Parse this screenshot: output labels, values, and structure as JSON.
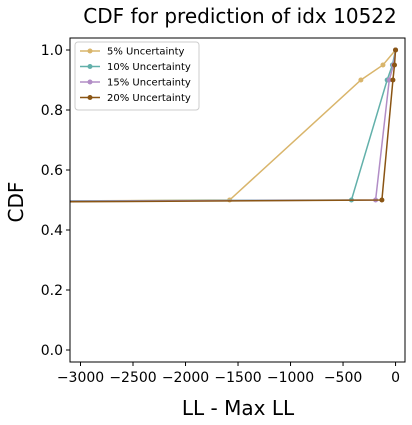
{
  "chart_data": {
    "type": "line",
    "title": "CDF for prediction of idx 10522",
    "xlabel": "LL - Max LL",
    "ylabel": "CDF",
    "xlim": [
      -3100,
      90
    ],
    "ylim": [
      -0.04,
      1.04
    ],
    "xticks": [
      -3000,
      -2500,
      -2000,
      -1500,
      -1000,
      -500,
      0
    ],
    "xtick_labels": [
      "−3000",
      "−2500",
      "−2000",
      "−1500",
      "−1000",
      "−500",
      "0"
    ],
    "yticks": [
      0.0,
      0.2,
      0.4,
      0.6,
      0.8,
      1.0
    ],
    "ytick_labels": [
      "0.0",
      "0.2",
      "0.4",
      "0.6",
      "0.8",
      "1.0"
    ],
    "grid": false,
    "legend_position": "top-left",
    "series": [
      {
        "name": "5% Uncertainty",
        "color": "#d9b56b",
        "points": [
          [
            -3100,
            0.497
          ],
          [
            -1580,
            0.5
          ],
          [
            -330,
            0.9
          ],
          [
            -120,
            0.95
          ],
          [
            0,
            1.0
          ]
        ]
      },
      {
        "name": "10% Uncertainty",
        "color": "#62b0aa",
        "points": [
          [
            -3100,
            0.497
          ],
          [
            -420,
            0.5
          ],
          [
            -80,
            0.9
          ],
          [
            -30,
            0.95
          ],
          [
            0,
            1.0
          ]
        ]
      },
      {
        "name": "15% Uncertainty",
        "color": "#b28dc6",
        "points": [
          [
            -3100,
            0.496
          ],
          [
            -190,
            0.5
          ],
          [
            -60,
            0.9
          ],
          [
            -20,
            0.95
          ],
          [
            0,
            1.0
          ]
        ]
      },
      {
        "name": "20% Uncertainty",
        "color": "#8a5514",
        "points": [
          [
            -3100,
            0.494
          ],
          [
            -130,
            0.5
          ],
          [
            -25,
            0.9
          ],
          [
            -10,
            0.95
          ],
          [
            0,
            1.0
          ]
        ]
      }
    ]
  }
}
